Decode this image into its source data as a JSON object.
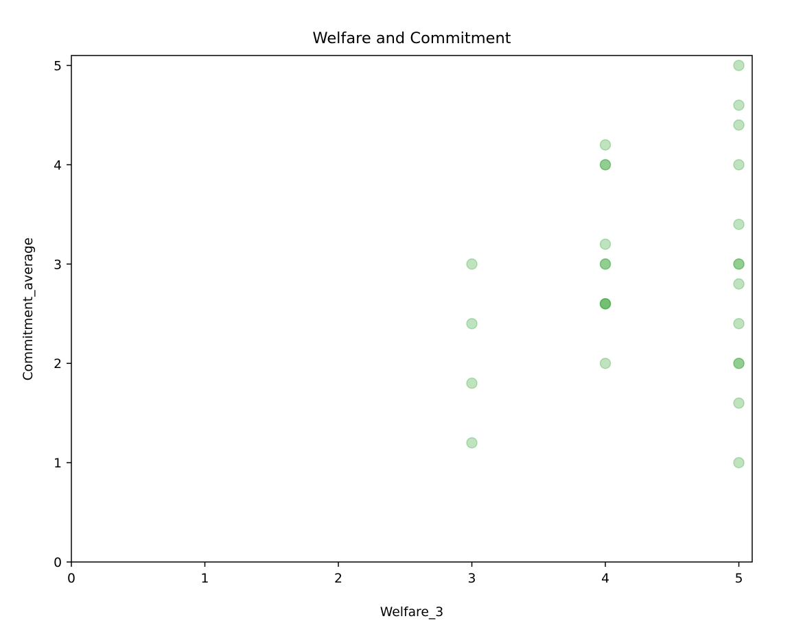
{
  "chart_data": {
    "type": "scatter",
    "title": "Welfare and Commitment",
    "xlabel": "Welfare_3",
    "ylabel": "Commitment_average",
    "xlim": [
      0,
      5.1
    ],
    "ylim": [
      0,
      5.1
    ],
    "xticks": [
      0,
      1,
      2,
      3,
      4,
      5
    ],
    "yticks": [
      0,
      1,
      2,
      3,
      4,
      5
    ],
    "grid": false,
    "marker_color": "#2ca02c",
    "marker_alpha": 0.3,
    "points": [
      {
        "x": 3,
        "y": 3.0
      },
      {
        "x": 3,
        "y": 2.4
      },
      {
        "x": 3,
        "y": 1.8
      },
      {
        "x": 3,
        "y": 1.2
      },
      {
        "x": 4,
        "y": 4.2
      },
      {
        "x": 4,
        "y": 4.0
      },
      {
        "x": 4,
        "y": 4.0
      },
      {
        "x": 4,
        "y": 3.2
      },
      {
        "x": 4,
        "y": 3.0
      },
      {
        "x": 4,
        "y": 3.0
      },
      {
        "x": 4,
        "y": 2.6
      },
      {
        "x": 4,
        "y": 2.6
      },
      {
        "x": 4,
        "y": 2.6
      },
      {
        "x": 4,
        "y": 2.0
      },
      {
        "x": 5,
        "y": 5.0
      },
      {
        "x": 5,
        "y": 4.6
      },
      {
        "x": 5,
        "y": 4.4
      },
      {
        "x": 5,
        "y": 4.0
      },
      {
        "x": 5,
        "y": 3.4
      },
      {
        "x": 5,
        "y": 3.0
      },
      {
        "x": 5,
        "y": 3.0
      },
      {
        "x": 5,
        "y": 2.8
      },
      {
        "x": 5,
        "y": 2.4
      },
      {
        "x": 5,
        "y": 2.0
      },
      {
        "x": 5,
        "y": 2.0
      },
      {
        "x": 5,
        "y": 1.6
      },
      {
        "x": 5,
        "y": 1.0
      }
    ]
  }
}
